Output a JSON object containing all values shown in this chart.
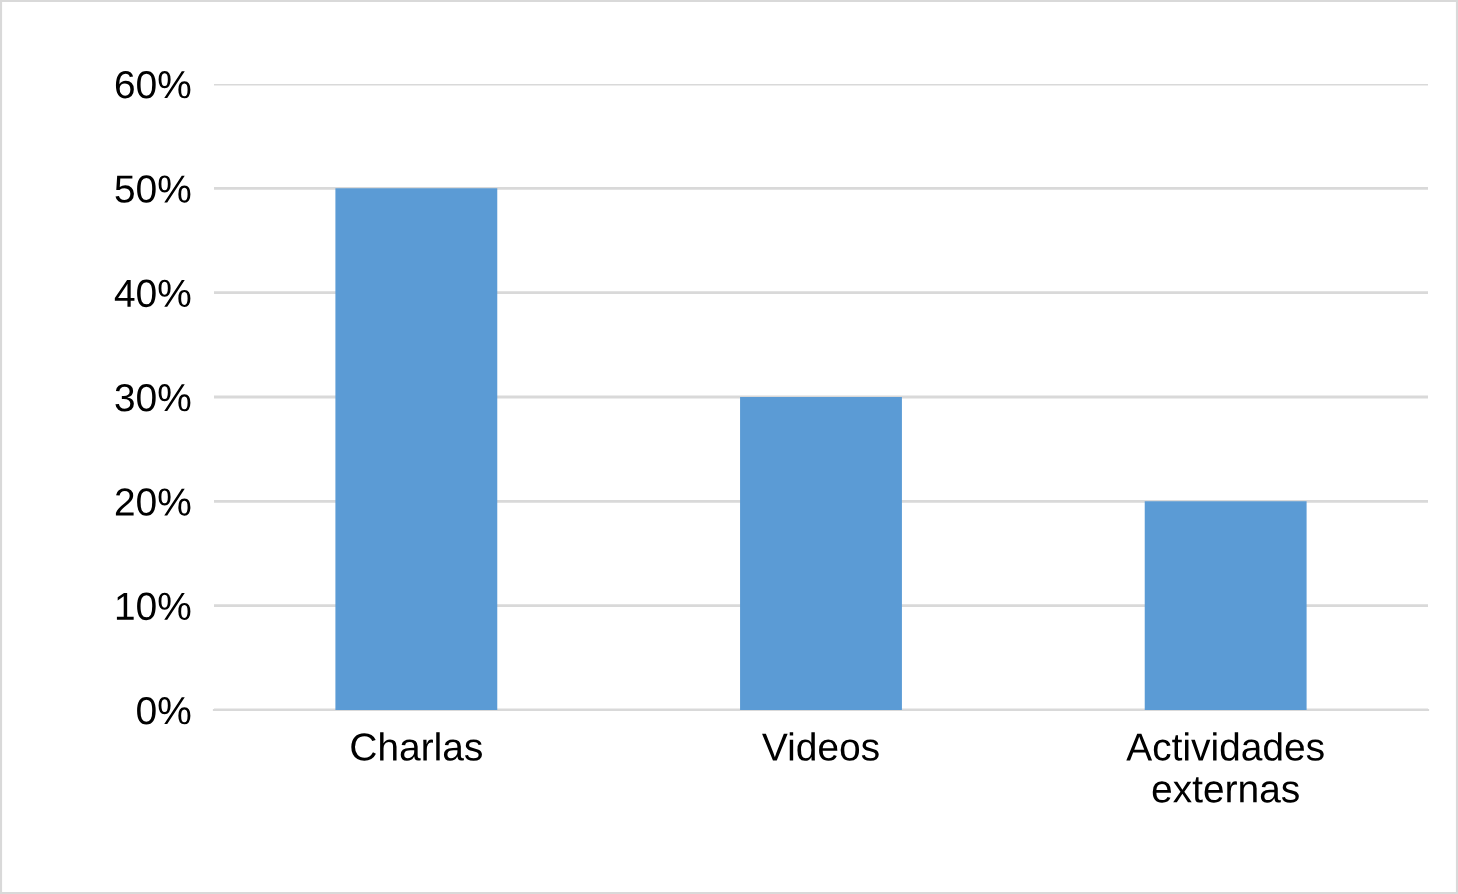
{
  "chart_data": {
    "type": "bar",
    "categories": [
      "Charlas",
      "Videos",
      "Actividades\nexternas"
    ],
    "values": [
      50,
      30,
      20
    ],
    "color": "#5b9bd5",
    "ylim": [
      0,
      60
    ],
    "yticks": [
      {
        "value": 0,
        "label": "0%"
      },
      {
        "value": 10,
        "label": "10%"
      },
      {
        "value": 20,
        "label": "20%"
      },
      {
        "value": 30,
        "label": "30%"
      },
      {
        "value": 40,
        "label": "40%"
      },
      {
        "value": 50,
        "label": "50%"
      },
      {
        "value": 60,
        "label": "60%"
      }
    ],
    "grid": "y"
  }
}
